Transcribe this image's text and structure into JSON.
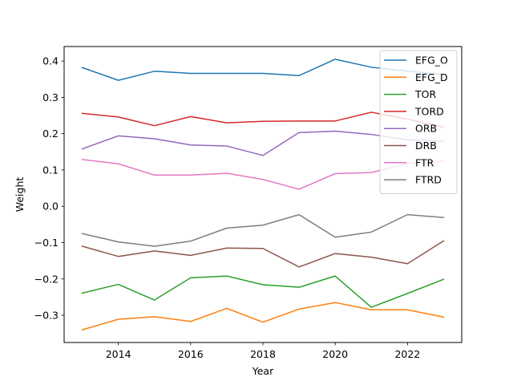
{
  "chart_data": {
    "type": "line",
    "title": "",
    "xlabel": "Year",
    "ylabel": "Weight",
    "xlim": [
      2012.5,
      2023.5
    ],
    "ylim": [
      -0.375,
      0.44
    ],
    "xticks": [
      2014,
      2016,
      2018,
      2020,
      2022
    ],
    "yticks": [
      -0.3,
      -0.2,
      -0.1,
      0.0,
      0.1,
      0.2,
      0.3,
      0.4
    ],
    "xtick_labels": [
      "2014",
      "2016",
      "2018",
      "2020",
      "2022"
    ],
    "ytick_labels": [
      "−0.3",
      "−0.2",
      "−0.1",
      "0.0",
      "0.1",
      "0.2",
      "0.3",
      "0.4"
    ],
    "grid": false,
    "legend_position": "upper-right",
    "x": [
      2013,
      2014,
      2015,
      2016,
      2017,
      2018,
      2019,
      2020,
      2021,
      2022,
      2023
    ],
    "series": [
      {
        "name": "EFG_O",
        "color": "#1f77b4",
        "values": [
          0.382,
          0.347,
          0.372,
          0.366,
          0.366,
          0.366,
          0.36,
          0.405,
          0.383,
          0.372,
          0.363
        ]
      },
      {
        "name": "EFG_D",
        "color": "#ff7f0e",
        "values": [
          -0.34,
          -0.311,
          -0.304,
          -0.317,
          -0.281,
          -0.319,
          -0.283,
          -0.265,
          -0.285,
          -0.285,
          -0.305
        ]
      },
      {
        "name": "TOR",
        "color": "#2ca02c",
        "values": [
          -0.239,
          -0.215,
          -0.258,
          -0.197,
          -0.192,
          -0.216,
          -0.223,
          -0.192,
          -0.278,
          -0.24,
          -0.201
        ]
      },
      {
        "name": "TORD",
        "color": "#d62728",
        "values": [
          0.256,
          0.246,
          0.222,
          0.247,
          0.23,
          0.234,
          0.235,
          0.235,
          0.259,
          0.24,
          0.218
        ]
      },
      {
        "name": "ORB",
        "color": "#9467bd",
        "values": [
          0.158,
          0.194,
          0.186,
          0.169,
          0.166,
          0.14,
          0.203,
          0.207,
          0.198,
          0.183,
          0.179
        ]
      },
      {
        "name": "DRB",
        "color": "#8c564b",
        "values": [
          -0.11,
          -0.138,
          -0.123,
          -0.135,
          -0.115,
          -0.116,
          -0.167,
          -0.13,
          -0.14,
          -0.158,
          -0.095
        ]
      },
      {
        "name": "FTR",
        "color": "#e377c2",
        "values": [
          0.129,
          0.117,
          0.086,
          0.086,
          0.091,
          0.074,
          0.047,
          0.09,
          0.093,
          0.118,
          0.124
        ]
      },
      {
        "name": "FTRD",
        "color": "#7f7f7f",
        "values": [
          -0.075,
          -0.098,
          -0.11,
          -0.096,
          -0.06,
          -0.052,
          -0.023,
          -0.085,
          -0.071,
          -0.023,
          -0.031
        ]
      }
    ]
  }
}
